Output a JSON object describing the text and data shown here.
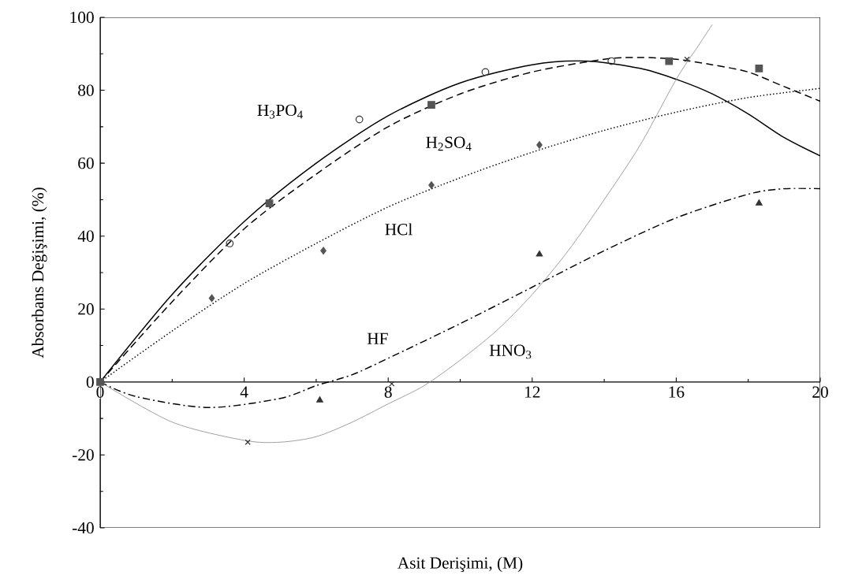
{
  "chart_data": {
    "type": "scatter",
    "xlabel": "Asit Derişimi, (M)",
    "ylabel": "Absorbans Değişimi, (%)",
    "xlim": [
      0,
      20
    ],
    "ylim": [
      -40,
      100
    ],
    "xticks": [
      0,
      4,
      8,
      12,
      16,
      20
    ],
    "yticks": [
      -40,
      -20,
      0,
      20,
      40,
      60,
      80,
      100
    ],
    "series": [
      {
        "marker": "circle",
        "color": "#333333",
        "x": [
          3.6,
          7.2,
          10.7,
          14.2
        ],
        "values": [
          38,
          72,
          85,
          88
        ]
      },
      {
        "marker": "square",
        "color": "#555555",
        "x": [
          0,
          4.7,
          9.2,
          15.8,
          18.3
        ],
        "values": [
          0,
          49,
          76,
          88,
          86
        ]
      },
      {
        "marker": "diamond",
        "color": "#555555",
        "x": [
          3.1,
          6.2,
          9.2,
          12.2
        ],
        "values": [
          23,
          36,
          54,
          65
        ]
      },
      {
        "marker": "triangle",
        "color": "#333333",
        "x": [
          6.1,
          12.2,
          18.3
        ],
        "values": [
          -5,
          35,
          49
        ]
      },
      {
        "marker": "cross",
        "color": "#333333",
        "x": [
          4.1,
          8.1,
          16.3
        ],
        "values": [
          -16.5,
          -0.5,
          88.5
        ]
      },
      {
        "type": "line",
        "name": "H$_{3}$PO$_{4}$",
        "line_style": "solid",
        "color": "#000000",
        "x": [
          0,
          2,
          4,
          6,
          8,
          10,
          12,
          13.5,
          15,
          16,
          17,
          18,
          19,
          20
        ],
        "values": [
          0,
          24,
          44,
          60,
          73,
          82,
          87,
          88,
          86,
          83,
          79,
          73.5,
          67,
          62
        ]
      },
      {
        "type": "line",
        "name": "H$_{2}$SO$_{4}$",
        "line_style": "dashed",
        "color": "#000000",
        "x": [
          0,
          2,
          4,
          6,
          8,
          10,
          12,
          14,
          15,
          16,
          17,
          18,
          19,
          20
        ],
        "values": [
          0,
          22,
          42,
          57,
          70,
          79,
          85,
          88.5,
          89,
          88.5,
          87,
          85,
          81,
          77
        ]
      },
      {
        "type": "line",
        "name": "HCl",
        "line_style": "dotted",
        "color": "#000000",
        "x": [
          0,
          2,
          4,
          6,
          8,
          10,
          12,
          14,
          16,
          18,
          20
        ],
        "values": [
          0,
          14,
          27,
          38,
          48,
          56,
          63,
          69,
          74,
          78,
          80.5
        ]
      },
      {
        "type": "line",
        "name": "HF",
        "line_style": "dashdot",
        "color": "#000000",
        "x": [
          0,
          1,
          3,
          5,
          6,
          7,
          8,
          10,
          12,
          14,
          16,
          18,
          19,
          20
        ],
        "values": [
          0,
          -4,
          -7,
          -4.5,
          -1,
          2,
          6.5,
          16,
          26,
          36,
          45,
          51.5,
          53,
          53
        ]
      },
      {
        "type": "line",
        "name": "HNO$_{3}$",
        "line_style": "solid",
        "color": "#888888",
        "x": [
          0,
          2,
          4,
          5,
          6,
          7,
          8,
          9,
          10,
          11,
          12,
          13,
          14,
          15,
          16,
          16.6,
          17
        ],
        "values": [
          0,
          -11,
          -16,
          -16.5,
          -15,
          -11,
          -6,
          -1,
          6,
          14,
          24,
          36,
          50,
          65,
          83,
          92,
          98
        ]
      }
    ]
  }
}
